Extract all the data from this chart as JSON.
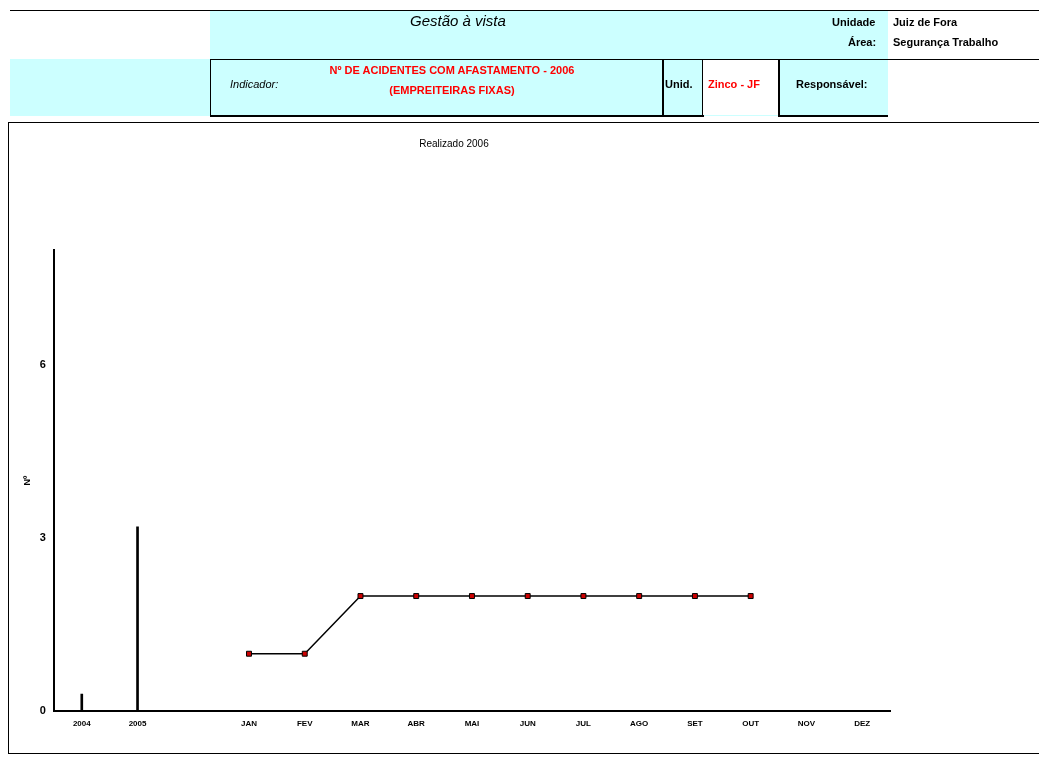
{
  "chart_data": {
    "type": "line",
    "title": "Realizado 2006",
    "ylabel": "Nº",
    "categories": [
      "2004",
      "2005",
      null,
      "JAN",
      "FEV",
      "MAR",
      "ABR",
      "MAI",
      "JUN",
      "JUL",
      "AGO",
      "SET",
      "OUT",
      "NOV",
      "DEZ"
    ],
    "series": [
      {
        "type": "bar",
        "color": "#000000",
        "values": [
          0.3,
          3.2,
          null,
          null,
          null,
          null,
          null,
          null,
          null,
          null,
          null,
          null,
          null,
          null,
          null
        ]
      },
      {
        "color": "#000000",
        "colors": [
          null,
          null,
          null,
          "#cc0000",
          "#cc0000",
          "#cc0000",
          "#cc0000",
          "#cc0000",
          "#cc0000",
          "#cc0000",
          "#cc0000",
          "#cc0000",
          "#cc0000",
          null,
          null
        ],
        "values": [
          null,
          null,
          null,
          1,
          1,
          2,
          2,
          2,
          2,
          2,
          2,
          2,
          2,
          null,
          null
        ]
      }
    ],
    "ylim": [
      0,
      8
    ],
    "yticks": [
      0,
      3,
      6
    ],
    "grid": false,
    "legend": false,
    "marker": "square",
    "line_style": "solid",
    "annotations": [
      "Gestão à vista",
      "Unidade",
      "Juiz de Fora",
      "Área:",
      "Segurança Trabalho",
      "Indicador:",
      "Nº DE ACIDENTES COM AFASTAMENTO - 2006",
      "(EMPREITEIRAS FIXAS)",
      "Unid.",
      "Zinco - JF",
      "Responsável:"
    ]
  }
}
